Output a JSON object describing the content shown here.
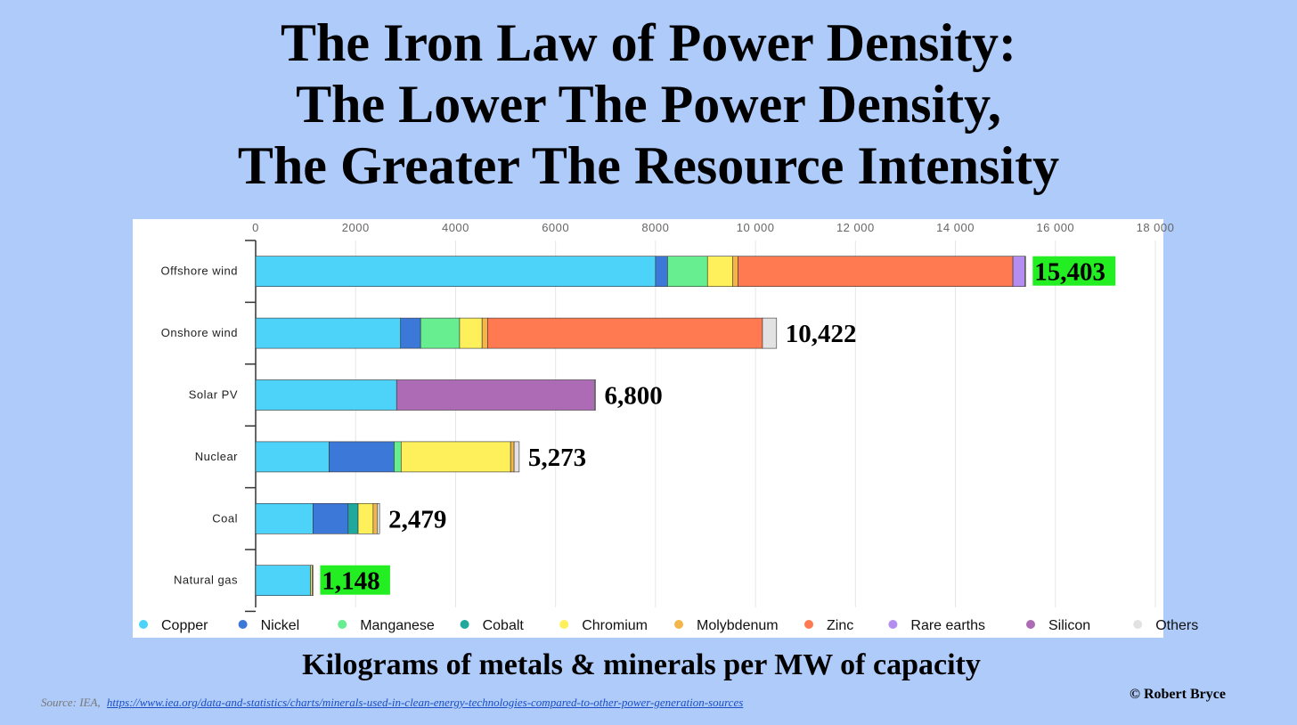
{
  "title": {
    "line1": "The Iron Law of Power Density:",
    "line2": "The Lower The Power Density,",
    "line3": "The Greater The Resource Intensity"
  },
  "footer": {
    "xlabel": "Kilograms of metals & minerals per MW of capacity",
    "copyright": "© Robert Bryce",
    "source_prefix": "Source: IEA,",
    "source_url": "https://www.iea.org/data-and-statistics/charts/minerals-used-in-clean-energy-technologies-compared-to-other-power-generation-sources"
  },
  "colors": {
    "background": "#aecbfa",
    "highlight": "#22ee22"
  },
  "chart_data": {
    "type": "bar",
    "orientation": "horizontal",
    "stacked": true,
    "xlim": [
      0,
      18000
    ],
    "xticks": [
      0,
      2000,
      4000,
      6000,
      8000,
      10000,
      12000,
      14000,
      16000,
      18000
    ],
    "xtick_labels": [
      "0",
      "2000",
      "4000",
      "6000",
      "8000",
      "10 000",
      "12 000",
      "14 000",
      "16 000",
      "18 000"
    ],
    "grid": true,
    "legend_position": "bottom",
    "categories": [
      "Offshore wind",
      "Onshore wind",
      "Solar PV",
      "Nuclear",
      "Coal",
      "Natural gas"
    ],
    "totals": [
      15403,
      10422,
      6800,
      5273,
      2479,
      1148
    ],
    "total_labels": [
      "15,403",
      "10,422",
      "6,800",
      "5,273",
      "2,479",
      "1,148"
    ],
    "highlighted": [
      true,
      false,
      false,
      false,
      false,
      true
    ],
    "series": [
      {
        "name": "Copper",
        "color": "#4dd3fa",
        "values": [
          8000,
          2900,
          2820,
          1470,
          1150,
          1100
        ]
      },
      {
        "name": "Nickel",
        "color": "#3c78d8",
        "values": [
          240,
          400,
          0,
          1300,
          700,
          0
        ]
      },
      {
        "name": "Manganese",
        "color": "#66ee90",
        "values": [
          800,
          780,
          0,
          140,
          0,
          0
        ]
      },
      {
        "name": "Cobalt",
        "color": "#1fa89c",
        "values": [
          0,
          0,
          0,
          0,
          200,
          0
        ]
      },
      {
        "name": "Chromium",
        "color": "#fdf05a",
        "values": [
          500,
          450,
          0,
          2190,
          300,
          30
        ]
      },
      {
        "name": "Molybdenum",
        "color": "#f4b64a",
        "values": [
          110,
          110,
          0,
          70,
          80,
          18
        ]
      },
      {
        "name": "Zinc",
        "color": "#ff7a50",
        "values": [
          5500,
          5500,
          0,
          0,
          0,
          0
        ]
      },
      {
        "name": "Rare earths",
        "color": "#b38ef0",
        "values": [
          239,
          0,
          0,
          0,
          0,
          0
        ]
      },
      {
        "name": "Silicon",
        "color": "#ad6bb5",
        "values": [
          0,
          0,
          3960,
          0,
          0,
          0
        ]
      },
      {
        "name": "Others",
        "color": "#e2e2e2",
        "values": [
          14,
          282,
          20,
          103,
          49,
          0
        ]
      }
    ]
  }
}
